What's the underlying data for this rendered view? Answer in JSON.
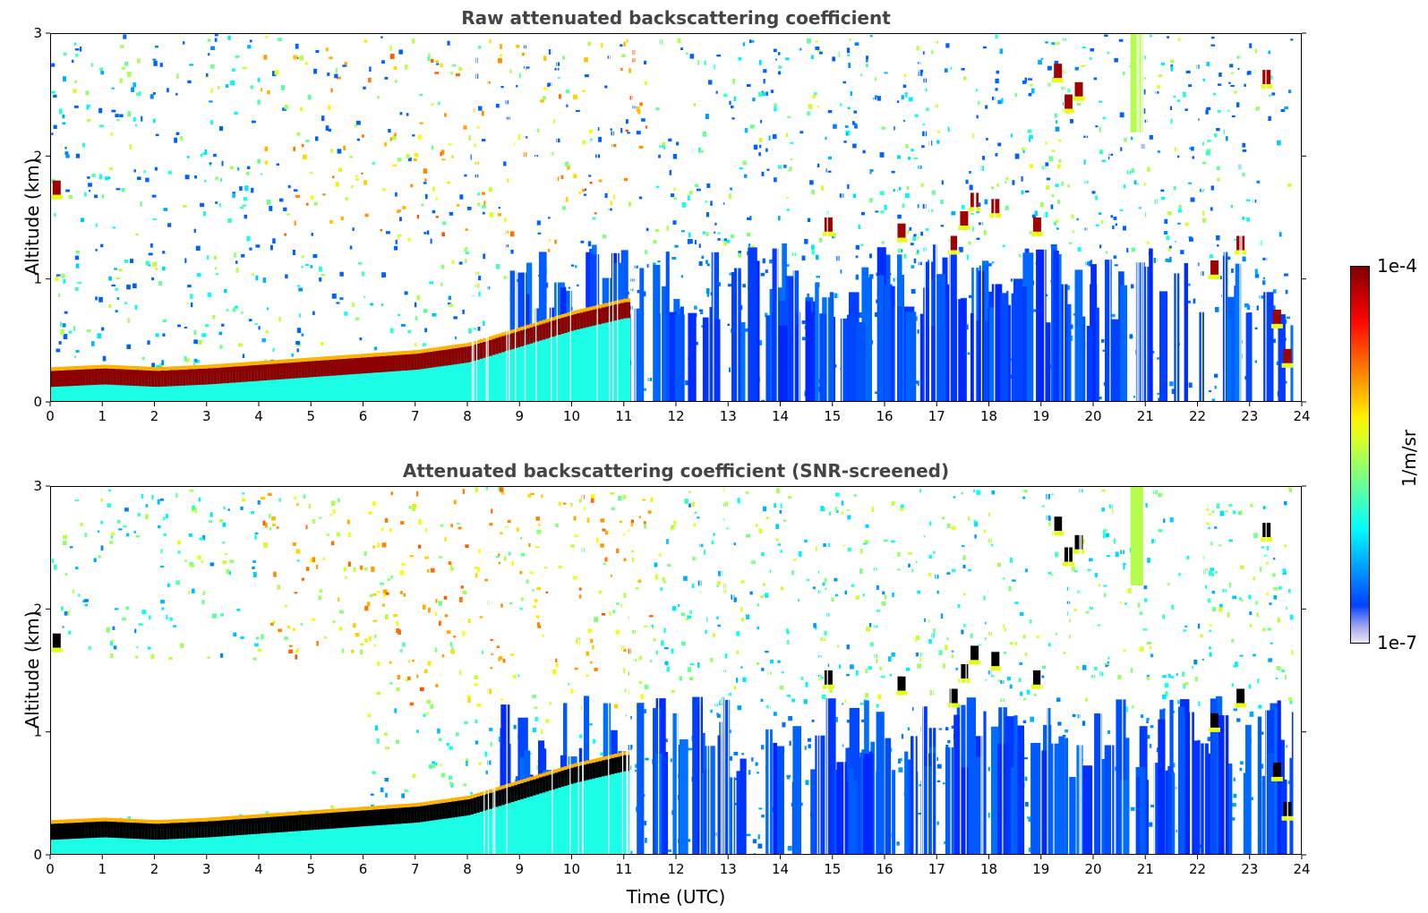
{
  "panels": [
    {
      "title": "Raw attenuated backscattering coefficient",
      "ylabel": "Altitude (km)"
    },
    {
      "title": "Attenuated backscattering coefficient (SNR-screened)",
      "ylabel": "Altitude (km)"
    }
  ],
  "xlabel": "Time (UTC)",
  "colorbar": {
    "label": "1/m/sr",
    "max_label": "1e-4",
    "min_label": "1e-7",
    "colormap": "jet"
  },
  "chart_data": [
    {
      "type": "heatmap",
      "title": "Raw attenuated backscattering coefficient",
      "xlabel": "",
      "ylabel": "Altitude (km)",
      "xlim": [
        0,
        24
      ],
      "ylim": [
        0,
        3
      ],
      "x_ticks": [
        "0",
        "1",
        "2",
        "3",
        "4",
        "5",
        "6",
        "7",
        "8",
        "9",
        "10",
        "11",
        "12",
        "13",
        "14",
        "15",
        "16",
        "17",
        "18",
        "19",
        "20",
        "21",
        "22",
        "23",
        "24"
      ],
      "y_ticks": [
        "0",
        "1",
        "2",
        "3"
      ],
      "boundary_layer_top_km": [
        [
          0,
          0.22
        ],
        [
          1,
          0.24
        ],
        [
          2,
          0.22
        ],
        [
          3,
          0.24
        ],
        [
          4,
          0.27
        ],
        [
          5,
          0.3
        ],
        [
          6,
          0.33
        ],
        [
          7,
          0.36
        ],
        [
          8,
          0.42
        ],
        [
          9,
          0.55
        ],
        [
          10,
          0.68
        ],
        [
          11,
          0.78
        ]
      ],
      "cloud_patches": [
        [
          0.1,
          1.75
        ],
        [
          14.9,
          1.45
        ],
        [
          16.3,
          1.4
        ],
        [
          17.3,
          1.3
        ],
        [
          17.5,
          1.5
        ],
        [
          17.7,
          1.65
        ],
        [
          18.1,
          1.6
        ],
        [
          18.9,
          1.45
        ],
        [
          19.5,
          2.45
        ],
        [
          19.7,
          2.55
        ],
        [
          19.3,
          2.7
        ],
        [
          22.3,
          1.1
        ],
        [
          22.8,
          1.3
        ],
        [
          23.3,
          2.65
        ],
        [
          23.5,
          0.7
        ],
        [
          23.7,
          0.38
        ]
      ]
    },
    {
      "type": "heatmap",
      "title": "Attenuated backscattering coefficient (SNR-screened)",
      "xlabel": "Time (UTC)",
      "ylabel": "Altitude (km)",
      "xlim": [
        0,
        24
      ],
      "ylim": [
        0,
        3
      ],
      "x_ticks": [
        "0",
        "1",
        "2",
        "3",
        "4",
        "5",
        "6",
        "7",
        "8",
        "9",
        "10",
        "11",
        "12",
        "13",
        "14",
        "15",
        "16",
        "17",
        "18",
        "19",
        "20",
        "21",
        "22",
        "23",
        "24"
      ],
      "y_ticks": [
        "0",
        "1",
        "2",
        "3"
      ],
      "boundary_layer_top_km": [
        [
          0,
          0.22
        ],
        [
          1,
          0.24
        ],
        [
          2,
          0.22
        ],
        [
          3,
          0.24
        ],
        [
          4,
          0.27
        ],
        [
          5,
          0.3
        ],
        [
          6,
          0.33
        ],
        [
          7,
          0.36
        ],
        [
          8,
          0.42
        ],
        [
          9,
          0.55
        ],
        [
          10,
          0.68
        ],
        [
          11,
          0.78
        ]
      ],
      "cloud_patches": [
        [
          0.1,
          1.75
        ],
        [
          14.9,
          1.45
        ],
        [
          16.3,
          1.4
        ],
        [
          17.3,
          1.3
        ],
        [
          17.5,
          1.5
        ],
        [
          17.7,
          1.65
        ],
        [
          18.1,
          1.6
        ],
        [
          18.9,
          1.45
        ],
        [
          19.5,
          2.45
        ],
        [
          19.7,
          2.55
        ],
        [
          19.3,
          2.7
        ],
        [
          22.3,
          1.1
        ],
        [
          22.8,
          1.3
        ],
        [
          23.3,
          2.65
        ],
        [
          23.5,
          0.7
        ],
        [
          23.7,
          0.38
        ]
      ]
    }
  ]
}
